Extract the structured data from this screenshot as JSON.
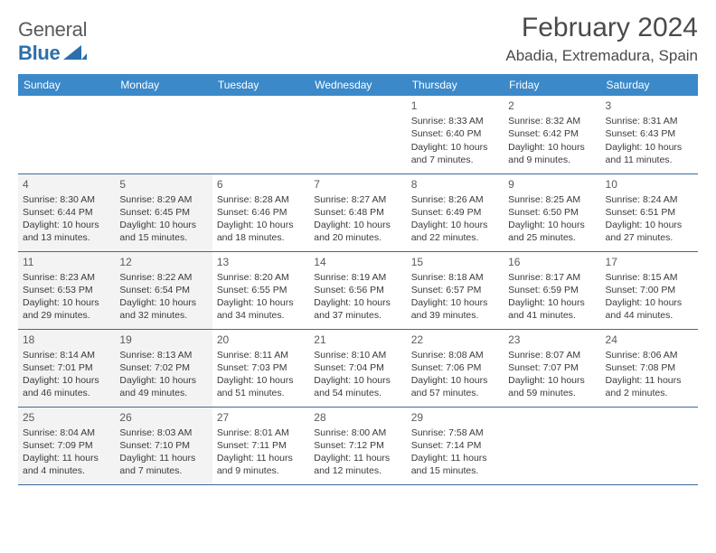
{
  "logo": {
    "text_general": "General",
    "text_blue": "Blue"
  },
  "header": {
    "title": "February 2024",
    "location": "Abadia, Extremadura, Spain"
  },
  "colors": {
    "header_bg": "#3b89c9",
    "header_text": "#ffffff",
    "border": "#3b6a9a",
    "dim_bg": "#f3f3f3",
    "title_color": "#4a4a4a"
  },
  "day_names": [
    "Sunday",
    "Monday",
    "Tuesday",
    "Wednesday",
    "Thursday",
    "Friday",
    "Saturday"
  ],
  "weeks": [
    [
      {
        "num": "",
        "lines": []
      },
      {
        "num": "",
        "lines": []
      },
      {
        "num": "",
        "lines": []
      },
      {
        "num": "",
        "lines": []
      },
      {
        "num": "1",
        "lines": [
          "Sunrise: 8:33 AM",
          "Sunset: 6:40 PM",
          "Daylight: 10 hours and 7 minutes."
        ]
      },
      {
        "num": "2",
        "lines": [
          "Sunrise: 8:32 AM",
          "Sunset: 6:42 PM",
          "Daylight: 10 hours and 9 minutes."
        ]
      },
      {
        "num": "3",
        "lines": [
          "Sunrise: 8:31 AM",
          "Sunset: 6:43 PM",
          "Daylight: 10 hours and 11 minutes."
        ]
      }
    ],
    [
      {
        "num": "4",
        "dim": true,
        "lines": [
          "Sunrise: 8:30 AM",
          "Sunset: 6:44 PM",
          "Daylight: 10 hours and 13 minutes."
        ]
      },
      {
        "num": "5",
        "dim": true,
        "lines": [
          "Sunrise: 8:29 AM",
          "Sunset: 6:45 PM",
          "Daylight: 10 hours and 15 minutes."
        ]
      },
      {
        "num": "6",
        "lines": [
          "Sunrise: 8:28 AM",
          "Sunset: 6:46 PM",
          "Daylight: 10 hours and 18 minutes."
        ]
      },
      {
        "num": "7",
        "lines": [
          "Sunrise: 8:27 AM",
          "Sunset: 6:48 PM",
          "Daylight: 10 hours and 20 minutes."
        ]
      },
      {
        "num": "8",
        "lines": [
          "Sunrise: 8:26 AM",
          "Sunset: 6:49 PM",
          "Daylight: 10 hours and 22 minutes."
        ]
      },
      {
        "num": "9",
        "lines": [
          "Sunrise: 8:25 AM",
          "Sunset: 6:50 PM",
          "Daylight: 10 hours and 25 minutes."
        ]
      },
      {
        "num": "10",
        "lines": [
          "Sunrise: 8:24 AM",
          "Sunset: 6:51 PM",
          "Daylight: 10 hours and 27 minutes."
        ]
      }
    ],
    [
      {
        "num": "11",
        "dim": true,
        "lines": [
          "Sunrise: 8:23 AM",
          "Sunset: 6:53 PM",
          "Daylight: 10 hours and 29 minutes."
        ]
      },
      {
        "num": "12",
        "dim": true,
        "lines": [
          "Sunrise: 8:22 AM",
          "Sunset: 6:54 PM",
          "Daylight: 10 hours and 32 minutes."
        ]
      },
      {
        "num": "13",
        "lines": [
          "Sunrise: 8:20 AM",
          "Sunset: 6:55 PM",
          "Daylight: 10 hours and 34 minutes."
        ]
      },
      {
        "num": "14",
        "lines": [
          "Sunrise: 8:19 AM",
          "Sunset: 6:56 PM",
          "Daylight: 10 hours and 37 minutes."
        ]
      },
      {
        "num": "15",
        "lines": [
          "Sunrise: 8:18 AM",
          "Sunset: 6:57 PM",
          "Daylight: 10 hours and 39 minutes."
        ]
      },
      {
        "num": "16",
        "lines": [
          "Sunrise: 8:17 AM",
          "Sunset: 6:59 PM",
          "Daylight: 10 hours and 41 minutes."
        ]
      },
      {
        "num": "17",
        "lines": [
          "Sunrise: 8:15 AM",
          "Sunset: 7:00 PM",
          "Daylight: 10 hours and 44 minutes."
        ]
      }
    ],
    [
      {
        "num": "18",
        "dim": true,
        "lines": [
          "Sunrise: 8:14 AM",
          "Sunset: 7:01 PM",
          "Daylight: 10 hours and 46 minutes."
        ]
      },
      {
        "num": "19",
        "dim": true,
        "lines": [
          "Sunrise: 8:13 AM",
          "Sunset: 7:02 PM",
          "Daylight: 10 hours and 49 minutes."
        ]
      },
      {
        "num": "20",
        "lines": [
          "Sunrise: 8:11 AM",
          "Sunset: 7:03 PM",
          "Daylight: 10 hours and 51 minutes."
        ]
      },
      {
        "num": "21",
        "lines": [
          "Sunrise: 8:10 AM",
          "Sunset: 7:04 PM",
          "Daylight: 10 hours and 54 minutes."
        ]
      },
      {
        "num": "22",
        "lines": [
          "Sunrise: 8:08 AM",
          "Sunset: 7:06 PM",
          "Daylight: 10 hours and 57 minutes."
        ]
      },
      {
        "num": "23",
        "lines": [
          "Sunrise: 8:07 AM",
          "Sunset: 7:07 PM",
          "Daylight: 10 hours and 59 minutes."
        ]
      },
      {
        "num": "24",
        "lines": [
          "Sunrise: 8:06 AM",
          "Sunset: 7:08 PM",
          "Daylight: 11 hours and 2 minutes."
        ]
      }
    ],
    [
      {
        "num": "25",
        "dim": true,
        "lines": [
          "Sunrise: 8:04 AM",
          "Sunset: 7:09 PM",
          "Daylight: 11 hours and 4 minutes."
        ]
      },
      {
        "num": "26",
        "dim": true,
        "lines": [
          "Sunrise: 8:03 AM",
          "Sunset: 7:10 PM",
          "Daylight: 11 hours and 7 minutes."
        ]
      },
      {
        "num": "27",
        "lines": [
          "Sunrise: 8:01 AM",
          "Sunset: 7:11 PM",
          "Daylight: 11 hours and 9 minutes."
        ]
      },
      {
        "num": "28",
        "lines": [
          "Sunrise: 8:00 AM",
          "Sunset: 7:12 PM",
          "Daylight: 11 hours and 12 minutes."
        ]
      },
      {
        "num": "29",
        "lines": [
          "Sunrise: 7:58 AM",
          "Sunset: 7:14 PM",
          "Daylight: 11 hours and 15 minutes."
        ]
      },
      {
        "num": "",
        "lines": []
      },
      {
        "num": "",
        "lines": []
      }
    ]
  ]
}
